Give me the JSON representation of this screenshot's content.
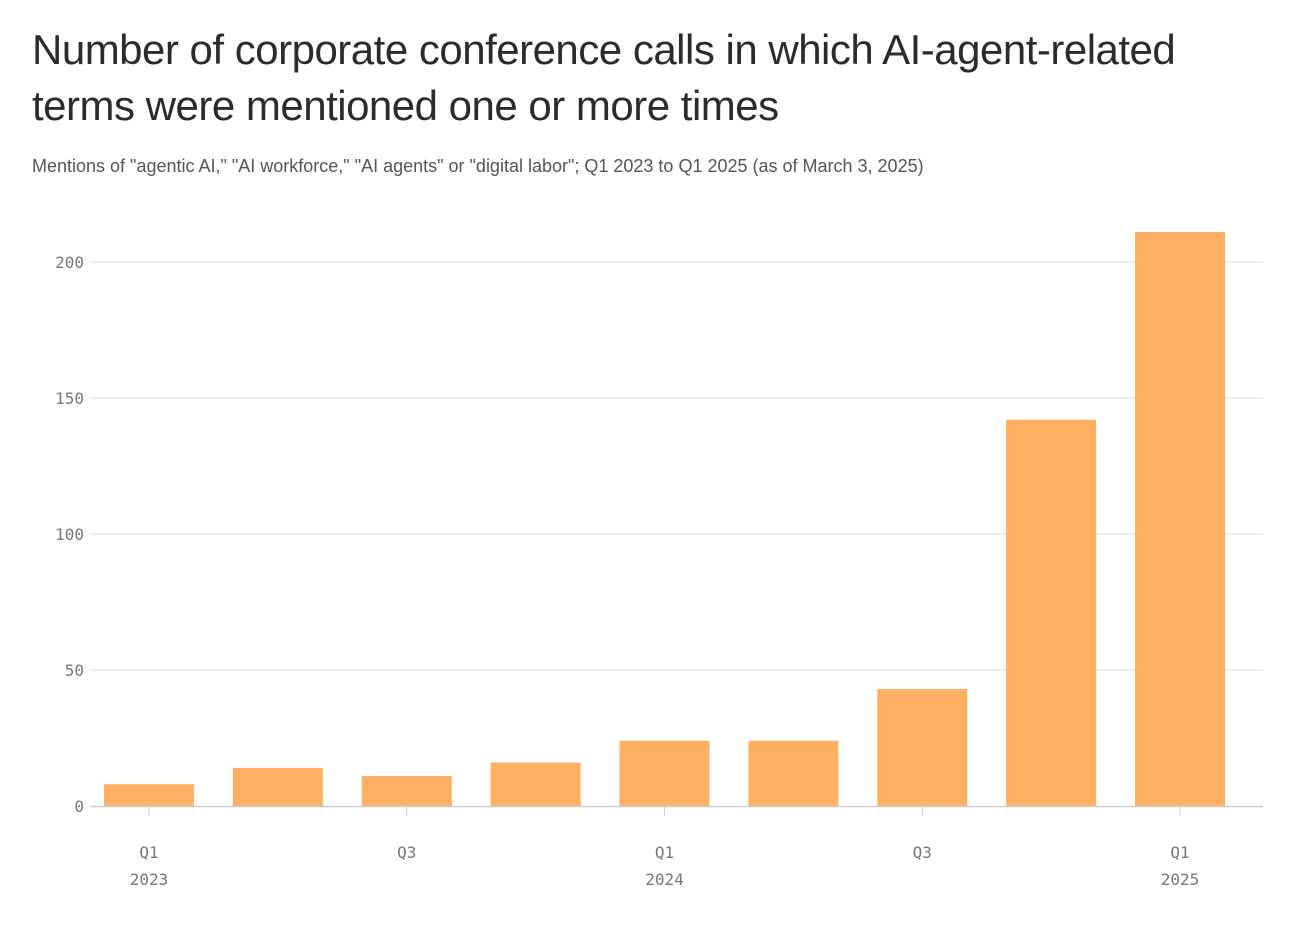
{
  "chart_data": {
    "type": "bar",
    "title": "Number of corporate conference calls in which AI-agent-related terms were mentioned one or more times",
    "subtitle": "Mentions of \"agentic AI,\" \"AI workforce,\" \"AI agents\" or \"digital labor\"; Q1 2023 to Q1 2025 (as of March 3, 2025)",
    "categories": [
      "Q1 2023",
      "Q2 2023",
      "Q3 2023",
      "Q4 2023",
      "Q1 2024",
      "Q2 2024",
      "Q3 2024",
      "Q4 2024",
      "Q1 2025"
    ],
    "values": [
      8,
      14,
      11,
      16,
      24,
      24,
      43,
      142,
      211
    ],
    "ylim": [
      0,
      220
    ],
    "yticks": [
      0,
      50,
      100,
      150,
      200
    ],
    "xtick_labels": [
      {
        "index": 0,
        "quarter": "Q1",
        "year": "2023"
      },
      {
        "index": 2,
        "quarter": "Q3",
        "year": ""
      },
      {
        "index": 4,
        "quarter": "Q1",
        "year": "2024"
      },
      {
        "index": 6,
        "quarter": "Q3",
        "year": ""
      },
      {
        "index": 8,
        "quarter": "Q1",
        "year": "2025"
      }
    ],
    "bar_color": "#fdb062",
    "grid": true,
    "xlabel": "",
    "ylabel": ""
  }
}
